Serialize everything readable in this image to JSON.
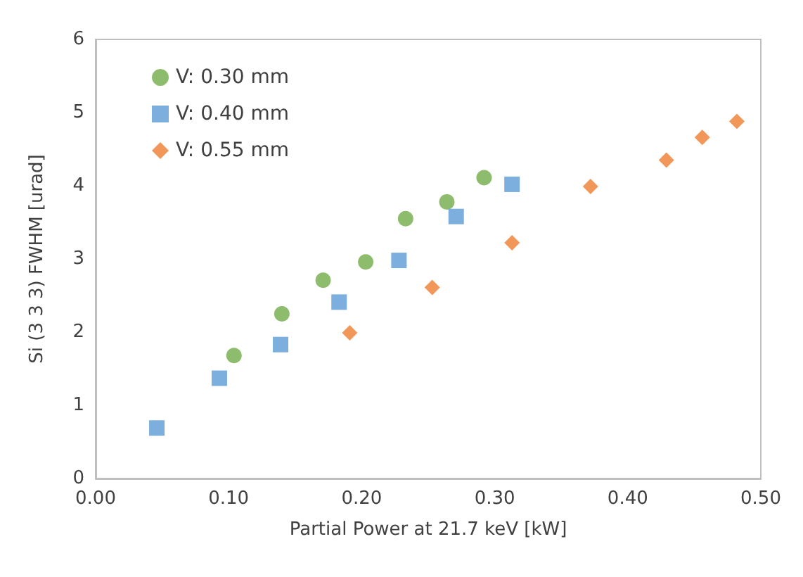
{
  "chart_data": {
    "type": "scatter",
    "xlabel": "Partial Power at 21.7 keV [kW]",
    "ylabel": "Si (3 3 3) FWHM [urad]",
    "xlim": [
      0,
      0.5
    ],
    "ylim": [
      0,
      6
    ],
    "xticks": [
      {
        "value": 0,
        "label": "0.00"
      },
      {
        "value": 0.1,
        "label": "0.10"
      },
      {
        "value": 0.2,
        "label": "0.20"
      },
      {
        "value": 0.3,
        "label": "0.30"
      },
      {
        "value": 0.4,
        "label": "0.40"
      },
      {
        "value": 0.5,
        "label": "0.50"
      }
    ],
    "yticks": [
      0,
      1,
      2,
      3,
      4,
      5,
      6
    ],
    "grid": false,
    "legend": "top left",
    "series": [
      {
        "name": "V: 0.30 mm",
        "color": "#70ad47",
        "marker": "circle",
        "x": [
          0.104,
          0.14,
          0.171,
          0.203,
          0.233,
          0.264,
          0.292
        ],
        "values": [
          1.68,
          2.25,
          2.71,
          2.96,
          3.55,
          3.78,
          4.11
        ]
      },
      {
        "name": "V: 0.40 mm",
        "color": "#5b9bd5",
        "marker": "square",
        "x": [
          0.046,
          0.093,
          0.139,
          0.183,
          0.228,
          0.271,
          0.313
        ],
        "values": [
          0.69,
          1.37,
          1.83,
          2.41,
          2.98,
          3.58,
          4.02
        ]
      },
      {
        "name": "V: 0.55 mm",
        "color": "#ed7d31",
        "marker": "diamond",
        "x": [
          0.191,
          0.253,
          0.313,
          0.372,
          0.429,
          0.456,
          0.482
        ],
        "values": [
          1.99,
          2.61,
          3.22,
          3.99,
          4.35,
          4.66,
          4.88
        ]
      }
    ]
  }
}
